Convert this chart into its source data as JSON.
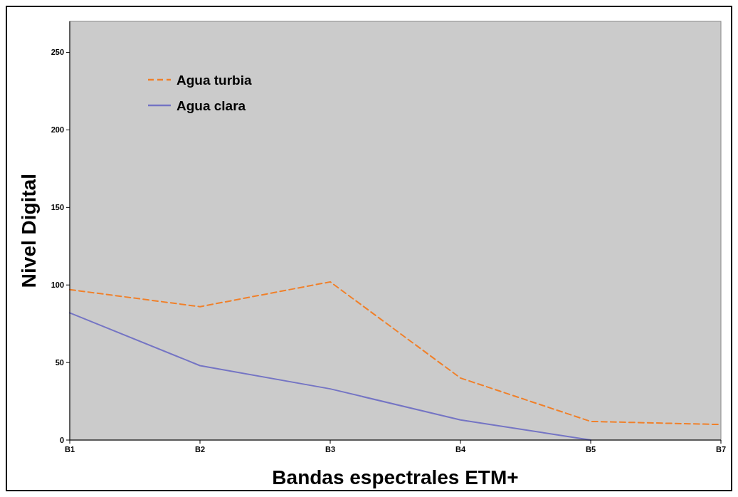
{
  "chart_data": {
    "type": "line",
    "xlabel": "Bandas espectrales ETM+",
    "ylabel": "Nivel Digital",
    "categories": [
      "B1",
      "B2",
      "B3",
      "B4",
      "B5",
      "B7"
    ],
    "series": [
      {
        "name": "Agua turbia",
        "color": "#f0802a",
        "line_style": "dashed",
        "values": [
          97,
          86,
          102,
          40,
          12,
          10
        ]
      },
      {
        "name": "Agua clara",
        "color": "#7474c4",
        "line_style": "solid",
        "values": [
          82,
          48,
          33,
          13,
          0,
          null
        ]
      }
    ],
    "ylim": [
      0,
      270
    ],
    "yticks": [
      0,
      50,
      100,
      150,
      200,
      250
    ],
    "grid": false,
    "legend": "top left",
    "marker": "none"
  }
}
